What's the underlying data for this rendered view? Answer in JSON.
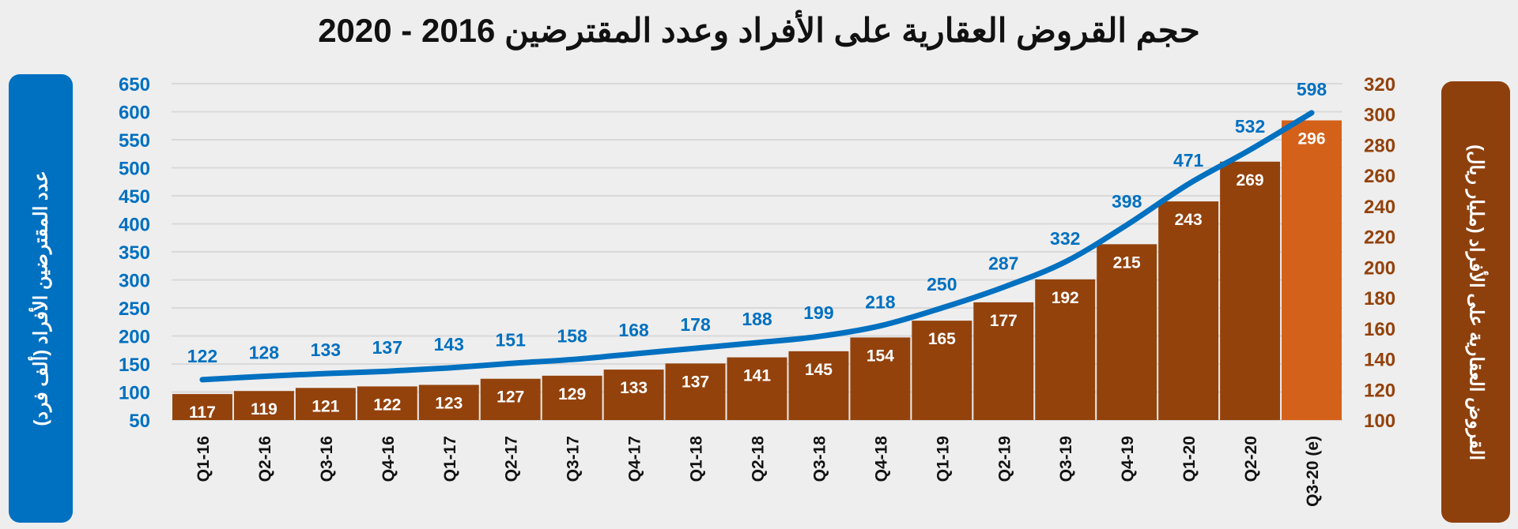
{
  "chart_data": {
    "type": "bar+line",
    "title": "حجم القروض العقارية على الأفراد وعدد المقترضين 2016 - 2020",
    "categories": [
      "Q1-16",
      "Q2-16",
      "Q3-16",
      "Q4-16",
      "Q1-17",
      "Q2-17",
      "Q3-17",
      "Q4-17",
      "Q1-18",
      "Q2-18",
      "Q3-18",
      "Q4-18",
      "Q1-19",
      "Q2-19",
      "Q3-19",
      "Q4-19",
      "Q1-20",
      "Q2-20",
      "Q3-20 (e)"
    ],
    "series": [
      {
        "name": "القروض العقارية على الأفراد (مليار ريال)",
        "type": "bar",
        "axis": "right",
        "color": "#93420c",
        "highlight_color": "#d4611a",
        "values": [
          117,
          119,
          121,
          122,
          123,
          127,
          129,
          133,
          137,
          141,
          145,
          154,
          165,
          177,
          192,
          215,
          243,
          269,
          296
        ]
      },
      {
        "name": "عدد المقترضين الأفراد (ألف فرد)",
        "type": "line",
        "axis": "left",
        "color": "#0070c0",
        "values": [
          122,
          128,
          133,
          137,
          143,
          151,
          158,
          168,
          178,
          188,
          199,
          218,
          250,
          287,
          332,
          398,
          471,
          532,
          598
        ]
      }
    ],
    "left_axis": {
      "label": "عدد المقترضين الأفراد (ألف فرد)",
      "ylim": [
        50,
        650
      ],
      "ticks": [
        50,
        100,
        150,
        200,
        250,
        300,
        350,
        400,
        450,
        500,
        550,
        600,
        650
      ],
      "color": "#0070c0"
    },
    "right_axis": {
      "label": "القروض العقارية على الأفراد (مليار ريال)",
      "ylim": [
        100,
        320
      ],
      "ticks": [
        100,
        120,
        140,
        160,
        180,
        200,
        220,
        240,
        260,
        280,
        300,
        320
      ],
      "color": "#93420c"
    },
    "grid": true,
    "legend": "none"
  }
}
